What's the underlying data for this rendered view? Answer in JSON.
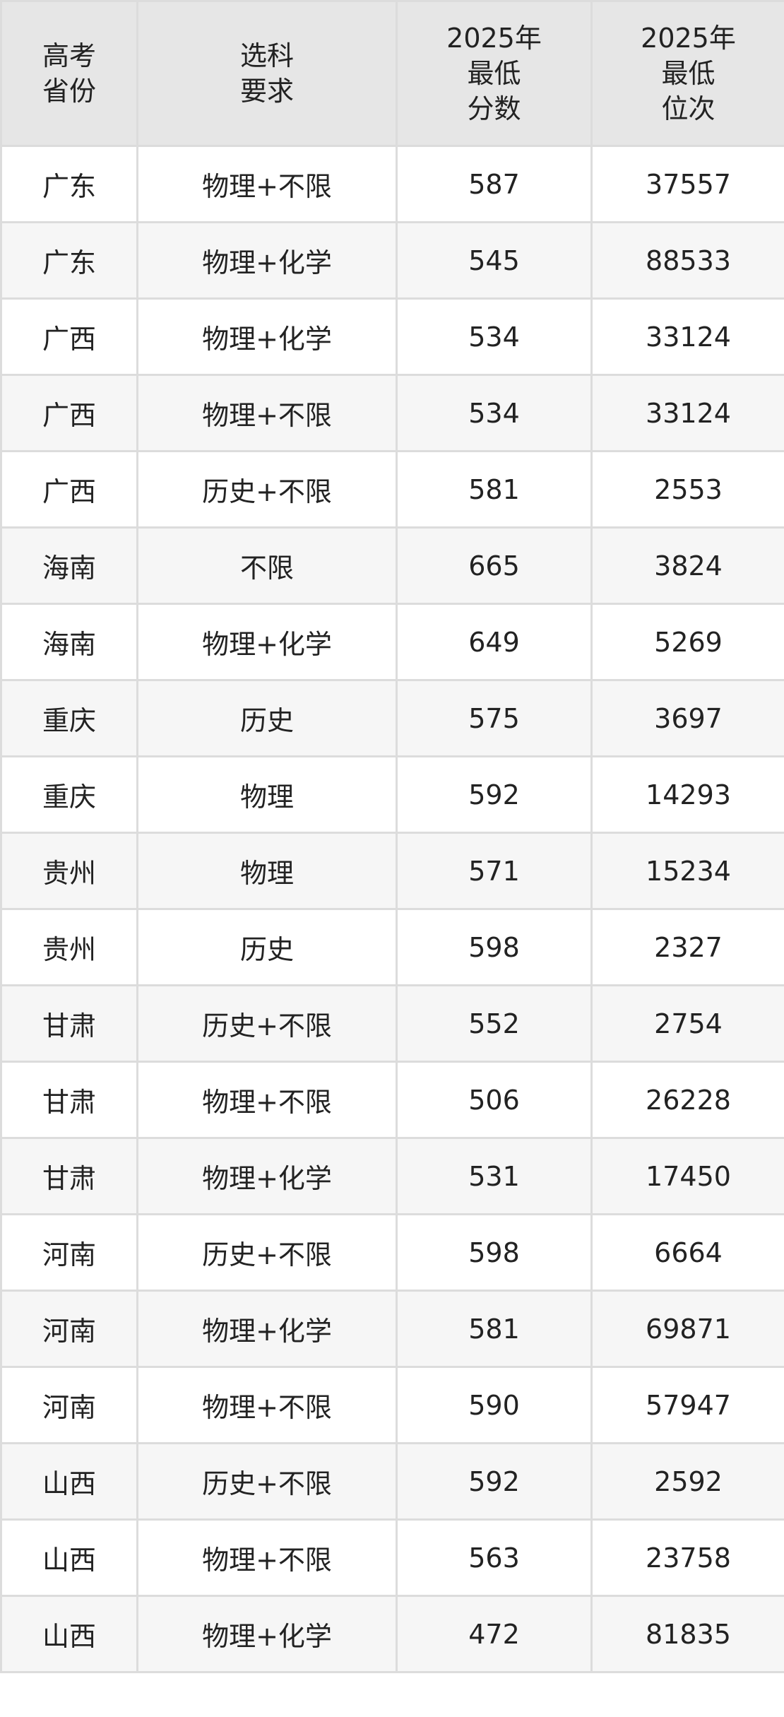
{
  "table": {
    "headers": [
      "高考\n省份",
      "选科\n要求",
      "2025年\n最低\n分数",
      "2025年\n最低\n位次"
    ],
    "rows": [
      {
        "province": "广东",
        "subject": "物理+不限",
        "score": "587",
        "rank": "37557"
      },
      {
        "province": "广东",
        "subject": "物理+化学",
        "score": "545",
        "rank": "88533"
      },
      {
        "province": "广西",
        "subject": "物理+化学",
        "score": "534",
        "rank": "33124"
      },
      {
        "province": "广西",
        "subject": "物理+不限",
        "score": "534",
        "rank": "33124"
      },
      {
        "province": "广西",
        "subject": "历史+不限",
        "score": "581",
        "rank": "2553"
      },
      {
        "province": "海南",
        "subject": "不限",
        "score": "665",
        "rank": "3824"
      },
      {
        "province": "海南",
        "subject": "物理+化学",
        "score": "649",
        "rank": "5269"
      },
      {
        "province": "重庆",
        "subject": "历史",
        "score": "575",
        "rank": "3697"
      },
      {
        "province": "重庆",
        "subject": "物理",
        "score": "592",
        "rank": "14293"
      },
      {
        "province": "贵州",
        "subject": "物理",
        "score": "571",
        "rank": "15234"
      },
      {
        "province": "贵州",
        "subject": "历史",
        "score": "598",
        "rank": "2327"
      },
      {
        "province": "甘肃",
        "subject": "历史+不限",
        "score": "552",
        "rank": "2754"
      },
      {
        "province": "甘肃",
        "subject": "物理+不限",
        "score": "506",
        "rank": "26228"
      },
      {
        "province": "甘肃",
        "subject": "物理+化学",
        "score": "531",
        "rank": "17450"
      },
      {
        "province": "河南",
        "subject": "历史+不限",
        "score": "598",
        "rank": "6664"
      },
      {
        "province": "河南",
        "subject": "物理+化学",
        "score": "581",
        "rank": "69871"
      },
      {
        "province": "河南",
        "subject": "物理+不限",
        "score": "590",
        "rank": "57947"
      },
      {
        "province": "山西",
        "subject": "历史+不限",
        "score": "592",
        "rank": "2592"
      },
      {
        "province": "山西",
        "subject": "物理+不限",
        "score": "563",
        "rank": "23758"
      },
      {
        "province": "山西",
        "subject": "物理+化学",
        "score": "472",
        "rank": "81835"
      }
    ]
  }
}
